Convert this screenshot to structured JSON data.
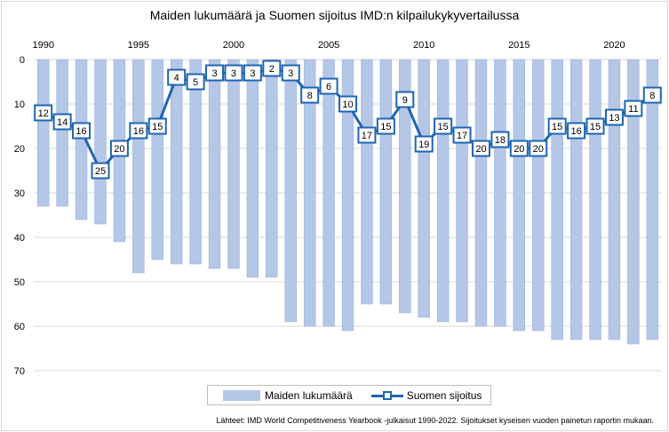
{
  "chart_data": {
    "type": "bar+line",
    "title": "Maiden lukumäärä ja Suomen sijoitus IMD:n kilpailukykyvertailussa",
    "x": [
      1990,
      1991,
      1992,
      1993,
      1994,
      1995,
      1996,
      1997,
      1998,
      1999,
      2000,
      2001,
      2002,
      2003,
      2004,
      2005,
      2006,
      2007,
      2008,
      2009,
      2010,
      2011,
      2012,
      2013,
      2014,
      2015,
      2016,
      2017,
      2018,
      2019,
      2020,
      2021,
      2022
    ],
    "x_tick_labels": [
      "1990",
      "1995",
      "2000",
      "2005",
      "2010",
      "2015",
      "2020"
    ],
    "y_tick_labels": [
      "0",
      "10",
      "20",
      "30",
      "40",
      "50",
      "60",
      "70"
    ],
    "ylim": [
      0,
      70
    ],
    "y_inverted": true,
    "x_axis_position": "top",
    "grid": true,
    "series": [
      {
        "name": "Maiden lukumäärä",
        "type": "bar",
        "color": "#b4c7e7",
        "values": [
          33,
          33,
          36,
          37,
          41,
          48,
          45,
          46,
          46,
          47,
          47,
          49,
          49,
          59,
          60,
          60,
          61,
          55,
          55,
          57,
          58,
          59,
          59,
          60,
          60,
          61,
          61,
          63,
          63,
          63,
          63,
          64,
          63
        ]
      },
      {
        "name": "Suomen sijoitus",
        "type": "line",
        "color": "#1f65b3",
        "marker": "square",
        "values": [
          12,
          14,
          16,
          25,
          20,
          16,
          15,
          4,
          5,
          3,
          3,
          3,
          2,
          3,
          8,
          6,
          10,
          17,
          15,
          9,
          19,
          15,
          17,
          20,
          18,
          20,
          20,
          15,
          16,
          15,
          13,
          11,
          8
        ]
      }
    ],
    "legend": {
      "placement": "bottom",
      "items": [
        "Maiden lukumäärä",
        "Suomen sijoitus"
      ]
    },
    "source": "Lähteet: IMD World Competitiveness Yearbook -julkaisut 1990-2022. Sijoitukset kyseisen vuoden painetun raportin mukaan."
  }
}
